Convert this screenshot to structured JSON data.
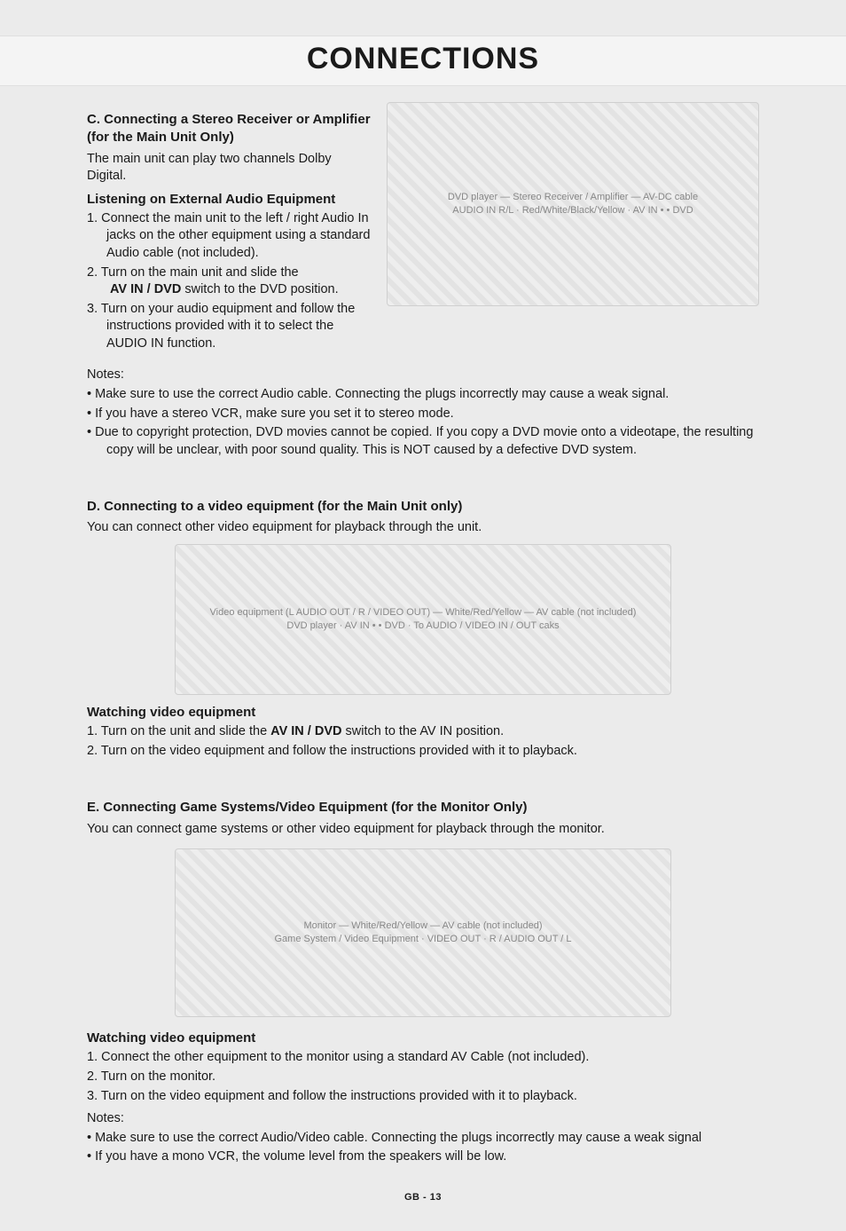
{
  "page_title": "CONNECTIONS",
  "footer": "GB - 13",
  "sectionC": {
    "heading": "C. Connecting a Stereo Receiver or Amplifier (for the Main Unit Only)",
    "intro": "The main unit can play two channels Dolby Digital.",
    "sub_heading": "Listening on External Audio Equipment",
    "steps_prefix": [
      "1. ",
      "2. ",
      "3. "
    ],
    "steps": [
      "Connect the main unit to the left / right Audio In jacks on the other equipment using a standard Audio cable (not included).",
      "Turn on the main unit and slide the  AV IN / DVD switch to the DVD position.",
      "Turn on your audio equipment and follow the instructions provided with it to select the AUDIO IN function."
    ],
    "step2_bold": "AV IN / DVD",
    "notes_label": "Notes:",
    "notes": [
      "Make sure to use the correct Audio cable. Connecting the plugs incorrectly may cause a weak signal.",
      "If you have a stereo VCR, make sure you set it to stereo mode.",
      "Due to copyright protection, DVD movies cannot be copied. If you copy a DVD movie onto a videotape, the resulting copy will be unclear, with poor sound quality. This is NOT caused by a defective DVD system."
    ],
    "diagram_labels": {
      "dvd_player": "DVD player",
      "stereo_amp": "Stereo Receiver / Amplifier",
      "av_dc_cable": "AV-DC cable",
      "switch": "AV IN • • DVD",
      "audio_in": "AUDIO IN",
      "jack_r": "R",
      "jack_l": "L",
      "c_red": "Red",
      "c_white": "White",
      "c_black": "Black",
      "c_yellow": "Yellow"
    }
  },
  "sectionD": {
    "heading": "D. Connecting  to a video equipment (for the Main Unit only)",
    "intro": "You can connect other video equipment for playback through the unit.",
    "diagram_labels": {
      "video_eq": "Video equipment",
      "dvd_player": "DVD player",
      "av_cable": "AV cable (not included)",
      "to_av": "To AUDIO / VIDEO IN / OUT caks",
      "switch": "AV IN • • DVD",
      "audio_out_l": "L AUDIO OUT",
      "audio_out_r": "R",
      "video_out": "VIDEO OUT",
      "c_white": "White",
      "c_red": "Red",
      "c_yellow": "Yellow"
    },
    "sub_heading": "Watching video equipment",
    "steps_prefix": [
      "1. ",
      "2. "
    ],
    "step1_pre": "Turn on the unit and slide the ",
    "step1_bold": "AV IN / DVD",
    "step1_post": " switch to the AV IN position.",
    "step2": "Turn on the video equipment and follow the instructions provided with it to playback."
  },
  "sectionE": {
    "heading": "E. Connecting Game Systems/Video Equipment (for the Monitor Only)",
    "intro": "You can connect game systems or other video equipment for playback through the monitor.",
    "diagram_labels": {
      "game_sys": "Game System / Video Equipment",
      "av_cable": "AV cable (not included)",
      "video_out": "VIDEO OUT",
      "audio_out": "AUDIO OUT",
      "jack_r": "R",
      "jack_l": "L",
      "c_white": "White",
      "c_red": "Red",
      "c_yellow": "Yellow"
    },
    "sub_heading": "Watching video equipment",
    "steps_prefix": [
      "1. ",
      "2. ",
      "3. "
    ],
    "steps": [
      "Connect the other equipment to the monitor using a standard AV Cable (not included).",
      "Turn on the monitor.",
      "Turn on the video equipment and follow the instructions provided with it to playback."
    ],
    "notes_label": "Notes:",
    "notes": [
      "Make sure to use the correct Audio/Video cable. Connecting the plugs incorrectly may cause a weak signal",
      "If you have a mono VCR, the volume level from the speakers will be low."
    ]
  },
  "colors": {
    "bg": "#ebebeb",
    "text": "#1a1a1a",
    "band": "#f4f4f4",
    "border": "#cfcfcf"
  },
  "fonts": {
    "body_pt": 14.5,
    "title_pt": 34,
    "heading_pt": 15
  }
}
